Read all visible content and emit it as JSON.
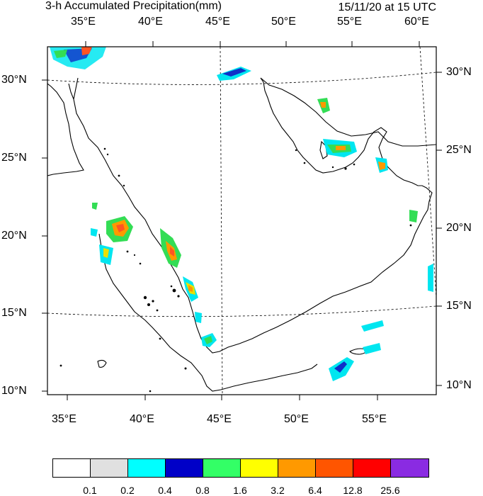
{
  "title": "3-h Accumulated Precipitation(mm)",
  "valid_time": "15/11/20 at 15 UTC",
  "top_lon_labels": [
    "35°E",
    "40°E",
    "45°E",
    "50°E",
    "55°E",
    "60°E"
  ],
  "bottom_lon_labels": [
    "35°E",
    "40°E",
    "45°E",
    "50°E",
    "55°E"
  ],
  "left_lat_labels": [
    "30°N",
    "25°N",
    "20°N",
    "15°N",
    "10°N"
  ],
  "right_lat_labels": [
    "30°N",
    "25°N",
    "20°N",
    "15°N",
    "10°N"
  ],
  "legend": {
    "colors": [
      "#ffffff",
      "#e0e0e0",
      "#00ffff",
      "#0000c8",
      "#33ff66",
      "#ffff00",
      "#ff9900",
      "#ff5500",
      "#ff0000",
      "#8a2be2"
    ],
    "thresholds": [
      "0.1",
      "0.2",
      "0.4",
      "0.8",
      "1.6",
      "3.2",
      "6.4",
      "12.8",
      "25.6"
    ]
  },
  "precip_colors": {
    "cyan": "#00e6f0",
    "blue": "#1030c8",
    "green": "#33dd55",
    "yellow": "#e8e000",
    "orange": "#ff9900",
    "red": "#ff5522"
  }
}
